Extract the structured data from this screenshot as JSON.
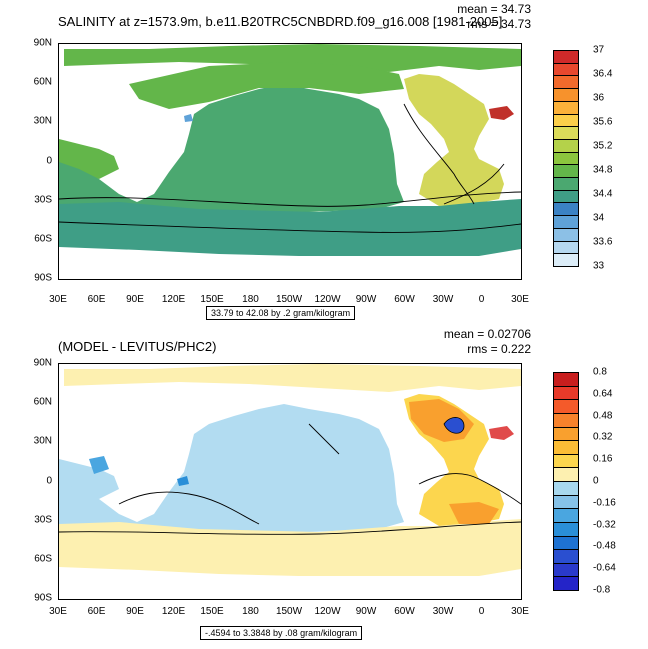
{
  "top": {
    "title": "SALINITY at z=1573.9m, b.e11.B20TRC5CNBDRD.f09_g16.008 [1981-2005]",
    "mean": "mean = 34.73",
    "rms": "rms = 34.73",
    "range": "33.79 to 42.08 by .2 gram/kilogram",
    "colorbar": {
      "labels": [
        "37",
        "36.4",
        "36",
        "35.6",
        "35.2",
        "34.8",
        "34.4",
        "34",
        "33.6",
        "33"
      ],
      "colors": [
        "#d02a2a",
        "#e8482e",
        "#f26a2c",
        "#f7922c",
        "#fbb13a",
        "#fccf4a",
        "#dcdc5a",
        "#b4d24a",
        "#8cc63e",
        "#63b64a",
        "#4ba870",
        "#3f9e86",
        "#3b82c4",
        "#5fa2d8",
        "#8cc0e6",
        "#b6d8f0",
        "#dcedf8"
      ]
    },
    "regions": {
      "pacific": "#4ba870",
      "atlantic_north": "#d3d75a",
      "southern": "#3f9e86",
      "arctic": "#63b64a",
      "med": "#c0302a"
    }
  },
  "bottom": {
    "title": "(MODEL - LEVITUS/PHC2)",
    "mean": "mean = 0.02706",
    "rms": "rms = 0.222",
    "range": "-.4594 to 3.3848 by .08 gram/kilogram",
    "colorbar": {
      "labels": [
        "0.8",
        "0.64",
        "0.48",
        "0.32",
        "0.16",
        "0",
        "-0.16",
        "-0.32",
        "-0.48",
        "-0.64",
        "-0.8"
      ],
      "colors": [
        "#c81e1e",
        "#e83a2a",
        "#f45a2a",
        "#f7822c",
        "#f9a02e",
        "#fbbd36",
        "#fcd64e",
        "#fdf0b0",
        "#a8d8ee",
        "#86c2e8",
        "#4aa6e0",
        "#2a8fd8",
        "#1e72d2",
        "#2a4fd0",
        "#2a3acb",
        "#2424c8"
      ]
    },
    "regions": {
      "pacific": "#b2dcf1",
      "atlantic": "#fcd64e",
      "atlantic_hot": "#f9a02e",
      "southern": "#fdf0b0",
      "med": "#e04a4a"
    }
  },
  "axes": {
    "x_ticks": [
      "30E",
      "60E",
      "90E",
      "120E",
      "150E",
      "180",
      "150W",
      "120W",
      "90W",
      "60W",
      "30W",
      "0",
      "30E"
    ],
    "y_ticks": [
      "90N",
      "60N",
      "30N",
      "0",
      "30S",
      "60S",
      "90S"
    ]
  }
}
